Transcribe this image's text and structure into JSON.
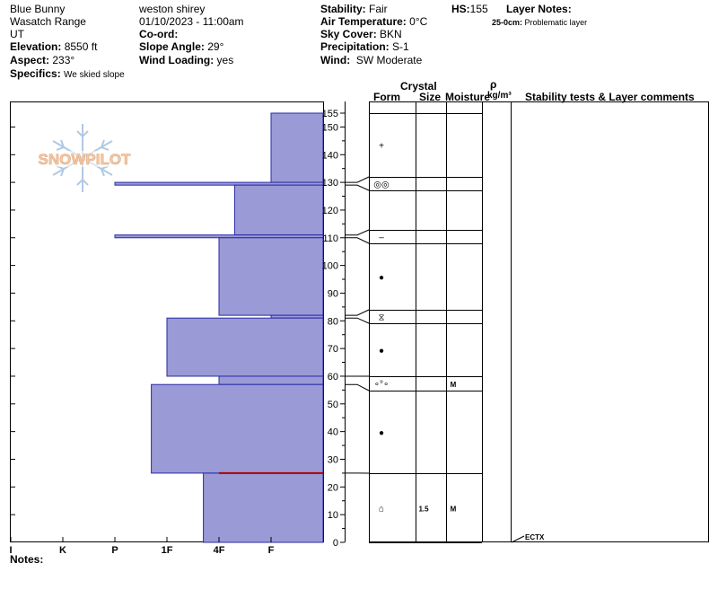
{
  "header": {
    "location": "Blue Bunny",
    "range": "Wasatch Range",
    "state": "UT",
    "elevation_label": "Elevation:",
    "elevation": "8550 ft",
    "aspect_label": "Aspect:",
    "aspect": "233°",
    "specifics_label": "Specifics:",
    "specifics": "We skied slope",
    "observer": "weston shirey",
    "datetime": "01/10/2023 - 11:00am",
    "coord_label": "Co-ord:",
    "slope_label": "Slope Angle:",
    "slope": "29°",
    "wind_loading_label": "Wind Loading:",
    "wind_loading": "yes",
    "stability_label": "Stability:",
    "stability": "Fair",
    "air_temp_label": "Air Temperature:",
    "air_temp": "0°C",
    "sky_label": "Sky Cover:",
    "sky": "BKN",
    "precip_label": "Precipitation:",
    "precip": "S-1",
    "wind_label": "Wind:",
    "wind": "SW Moderate",
    "hs_label": "HS:",
    "hs": "155",
    "layer_notes_label": "Layer Notes:",
    "layer_note_range": "25-0cm:",
    "layer_note_text": "Problematic layer",
    "notes_label": "Notes:"
  },
  "logo": "SNOWPILOT",
  "table_headers": {
    "form": "Form",
    "crystal": "Crystal",
    "size": "Size",
    "moisture": "Moisture",
    "rho": "ρ",
    "density": "kg/m³",
    "comments": "Stability tests & Layer comments"
  },
  "colors": {
    "layer_fill": "#9a9ad6",
    "layer_stroke": "#2a2aa8",
    "problem_line": "#b00000"
  },
  "chart_data": {
    "type": "snow-profile",
    "hardness_scale": [
      "I",
      "K",
      "P",
      "1F",
      "4F",
      "F"
    ],
    "hardness_units": "hardness index (F=1, 4F=2, 1F=3, P=4, K=5, I=6)",
    "ylim": [
      0,
      155
    ],
    "yticks": [
      0,
      10,
      20,
      30,
      40,
      50,
      60,
      70,
      80,
      90,
      100,
      110,
      120,
      130,
      140,
      150,
      155
    ],
    "layers": [
      {
        "top": 155,
        "bottom": 130,
        "hardness": 1.0
      },
      {
        "top": 130,
        "bottom": 129,
        "hardness": 4.0
      },
      {
        "top": 129,
        "bottom": 111,
        "hardness": 1.7
      },
      {
        "top": 111,
        "bottom": 110,
        "hardness": 4.0
      },
      {
        "top": 110,
        "bottom": 82,
        "hardness": 2.0
      },
      {
        "top": 82,
        "bottom": 81,
        "hardness": 1.0
      },
      {
        "top": 81,
        "bottom": 60,
        "hardness": 3.0
      },
      {
        "top": 60,
        "bottom": 57,
        "hardness": 2.0
      },
      {
        "top": 57,
        "bottom": 25,
        "hardness": 3.3
      },
      {
        "top": 25,
        "bottom": 0,
        "hardness": 2.3
      }
    ],
    "problem_layer_depth": 25,
    "grain_rows": [
      {
        "top": 155,
        "bottom": 130,
        "form": "+",
        "size": "",
        "moisture": ""
      },
      {
        "top": 130,
        "bottom": 129,
        "form": "◎◎",
        "size": "",
        "moisture": ""
      },
      {
        "top": 129,
        "bottom": 111,
        "form": "",
        "size": "",
        "moisture": ""
      },
      {
        "top": 111,
        "bottom": 110,
        "form": "–",
        "size": "",
        "moisture": ""
      },
      {
        "top": 110,
        "bottom": 82,
        "form": "●",
        "size": "",
        "moisture": ""
      },
      {
        "top": 82,
        "bottom": 81,
        "form": "⧖",
        "size": "",
        "moisture": ""
      },
      {
        "top": 81,
        "bottom": 60,
        "form": "●",
        "size": "",
        "moisture": ""
      },
      {
        "top": 60,
        "bottom": 57,
        "form": "∘°∘",
        "size": "",
        "moisture": "M"
      },
      {
        "top": 57,
        "bottom": 25,
        "form": "●",
        "size": "",
        "moisture": ""
      },
      {
        "top": 25,
        "bottom": 0,
        "form": "⌂",
        "size": "1.5",
        "moisture": "M"
      }
    ],
    "tests": [
      {
        "depth": 0,
        "label": "ECTX"
      }
    ]
  }
}
